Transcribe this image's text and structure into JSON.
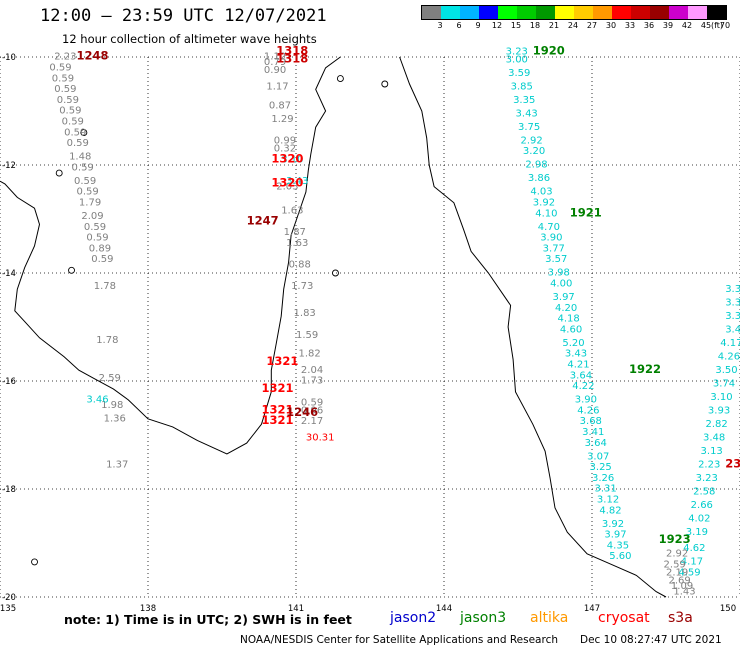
{
  "title": "12:00 – 23:59 UTC 12/07/2021",
  "subtitle": "12 hour collection of altimeter wave heights",
  "colorbar": {
    "colors": [
      "#808080",
      "#00e5e5",
      "#00b3ff",
      "#0000ff",
      "#00ff00",
      "#00cc00",
      "#009900",
      "#ffff00",
      "#ffcc00",
      "#ff9900",
      "#ff0000",
      "#cc0000",
      "#990000",
      "#cc00cc",
      "#ff99ff",
      "#000000"
    ],
    "labels": [
      "3",
      "6",
      "9",
      "12",
      "15",
      "18",
      "21",
      "24",
      "27",
      "30",
      "33",
      "36",
      "39",
      "42",
      "45",
      "70"
    ],
    "unit": "(ft)"
  },
  "axes": {
    "x_ticks": [
      "135",
      "138",
      "141",
      "144",
      "147",
      "150"
    ],
    "y_ticks": [
      "-10",
      "-12",
      "-14",
      "-16",
      "-18",
      "-20"
    ]
  },
  "note": "note: 1) Time is in UTC; 2) SWH is in feet",
  "legend": [
    {
      "label": "jason2",
      "color": "#0000cc"
    },
    {
      "label": "jason3",
      "color": "#008000"
    },
    {
      "label": "altika",
      "color": "#ff9900"
    },
    {
      "label": "cryosat",
      "color": "#ff0000"
    },
    {
      "label": "s3a",
      "color": "#990000"
    }
  ],
  "credit": "NOAA/NESDIS Center for Satellite Applications and Research",
  "credit_date": "Dec 10 08:27:47 UTC 2021",
  "chart_data": {
    "type": "scatter",
    "xlim": [
      135,
      150
    ],
    "ylim": [
      -20,
      -10
    ],
    "grid": true,
    "track_labels": [
      {
        "text": "1248",
        "lon": 136.55,
        "lat": -10.05,
        "color": "#990000"
      },
      {
        "text": "1318",
        "lon": 140.6,
        "lat": -9.95,
        "color": "#cc0000"
      },
      {
        "text": "1318",
        "lon": 140.6,
        "lat": -10.1,
        "color": "#cc0000"
      },
      {
        "text": "1320",
        "lon": 140.5,
        "lat": -11.95,
        "color": "#ff0000"
      },
      {
        "text": "1320",
        "lon": 140.5,
        "lat": -12.4,
        "color": "#ff0000"
      },
      {
        "text": "1247",
        "lon": 140.0,
        "lat": -13.1,
        "color": "#990000"
      },
      {
        "text": "1321",
        "lon": 140.4,
        "lat": -15.7,
        "color": "#ff0000"
      },
      {
        "text": "1321",
        "lon": 140.3,
        "lat": -16.2,
        "color": "#ff0000"
      },
      {
        "text": "1321",
        "lon": 140.3,
        "lat": -16.6,
        "color": "#ff0000"
      },
      {
        "text": "1321",
        "lon": 140.3,
        "lat": -16.8,
        "color": "#ff0000"
      },
      {
        "text": "1246",
        "lon": 140.8,
        "lat": -16.65,
        "color": "#990000"
      },
      {
        "text": "1920",
        "lon": 145.8,
        "lat": -9.95,
        "color": "#008000"
      },
      {
        "text": "1921",
        "lon": 146.55,
        "lat": -12.95,
        "color": "#008000"
      },
      {
        "text": "1922",
        "lon": 147.75,
        "lat": -15.85,
        "color": "#008000"
      },
      {
        "text": "1923",
        "lon": 148.35,
        "lat": -19.0,
        "color": "#008000"
      },
      {
        "text": "23",
        "lon": 149.7,
        "lat": -17.6,
        "color": "#cc0000"
      }
    ],
    "series": [
      {
        "name": "gray track 1",
        "color": "#808080",
        "points": [
          {
            "lon": 136.1,
            "lat": -10.05,
            "v": "2.23"
          },
          {
            "lon": 136.0,
            "lat": -10.25,
            "v": "0.59"
          },
          {
            "lon": 136.05,
            "lat": -10.45,
            "v": "0.59"
          },
          {
            "lon": 136.1,
            "lat": -10.65,
            "v": "0.59"
          },
          {
            "lon": 136.15,
            "lat": -10.85,
            "v": "0.59"
          },
          {
            "lon": 136.2,
            "lat": -11.05,
            "v": "0.59"
          },
          {
            "lon": 136.25,
            "lat": -11.25,
            "v": "0.59"
          },
          {
            "lon": 136.3,
            "lat": -11.45,
            "v": "0.59"
          },
          {
            "lon": 136.35,
            "lat": -11.65,
            "v": "0.59"
          },
          {
            "lon": 136.4,
            "lat": -11.9,
            "v": "1.48"
          },
          {
            "lon": 136.45,
            "lat": -12.1,
            "v": "0.59"
          },
          {
            "lon": 136.5,
            "lat": -12.35,
            "v": "0.59"
          },
          {
            "lon": 136.55,
            "lat": -12.55,
            "v": "0.59"
          },
          {
            "lon": 136.6,
            "lat": -12.75,
            "v": "1.79"
          },
          {
            "lon": 136.65,
            "lat": -13.0,
            "v": "2.09"
          },
          {
            "lon": 136.7,
            "lat": -13.2,
            "v": "0.59"
          },
          {
            "lon": 136.75,
            "lat": -13.4,
            "v": "0.59"
          },
          {
            "lon": 136.8,
            "lat": -13.6,
            "v": "0.89"
          },
          {
            "lon": 136.85,
            "lat": -13.8,
            "v": "0.59"
          },
          {
            "lon": 136.9,
            "lat": -14.3,
            "v": "1.78"
          },
          {
            "lon": 136.95,
            "lat": -15.3,
            "v": "1.78"
          },
          {
            "lon": 137.0,
            "lat": -16.0,
            "v": "2.59"
          },
          {
            "lon": 137.05,
            "lat": -16.5,
            "v": "1.98"
          },
          {
            "lon": 137.1,
            "lat": -16.75,
            "v": "1.36"
          },
          {
            "lon": 137.15,
            "lat": -17.6,
            "v": "1.37"
          }
        ]
      },
      {
        "name": "gray track 2",
        "color": "#808080",
        "points": [
          {
            "lon": 140.35,
            "lat": -10.05,
            "v": "1.12"
          },
          {
            "lon": 140.35,
            "lat": -10.15,
            "v": "0.79"
          },
          {
            "lon": 140.35,
            "lat": -10.3,
            "v": "0.90"
          },
          {
            "lon": 140.4,
            "lat": -10.6,
            "v": "1.17"
          },
          {
            "lon": 140.45,
            "lat": -10.95,
            "v": "0.87"
          },
          {
            "lon": 140.5,
            "lat": -11.2,
            "v": "1.29"
          },
          {
            "lon": 140.55,
            "lat": -11.6,
            "v": "0.99"
          },
          {
            "lon": 140.55,
            "lat": -11.75,
            "v": "0.32"
          },
          {
            "lon": 140.6,
            "lat": -12.45,
            "v": "2.03"
          },
          {
            "lon": 140.7,
            "lat": -12.9,
            "v": "1.63"
          },
          {
            "lon": 140.75,
            "lat": -13.3,
            "v": "1.87"
          },
          {
            "lon": 140.8,
            "lat": -13.5,
            "v": "1.63"
          },
          {
            "lon": 140.85,
            "lat": -13.9,
            "v": "0.88"
          },
          {
            "lon": 140.9,
            "lat": -14.3,
            "v": "1.73"
          },
          {
            "lon": 140.95,
            "lat": -14.8,
            "v": "1.83"
          },
          {
            "lon": 141.0,
            "lat": -15.2,
            "v": "1.59"
          },
          {
            "lon": 141.05,
            "lat": -15.55,
            "v": "1.82"
          },
          {
            "lon": 141.1,
            "lat": -15.85,
            "v": "2.04"
          },
          {
            "lon": 141.1,
            "lat": -16.05,
            "v": "1.73"
          },
          {
            "lon": 141.1,
            "lat": -16.45,
            "v": "0.59"
          },
          {
            "lon": 141.1,
            "lat": -16.6,
            "v": "0.96"
          },
          {
            "lon": 141.1,
            "lat": -16.8,
            "v": "2.17"
          }
        ]
      },
      {
        "name": "cyan track 1",
        "color": "#00cccc",
        "points": [
          {
            "lon": 145.25,
            "lat": -9.95,
            "v": "3.23"
          },
          {
            "lon": 145.25,
            "lat": -10.1,
            "v": "3.00"
          },
          {
            "lon": 145.3,
            "lat": -10.35,
            "v": "3.59"
          },
          {
            "lon": 145.35,
            "lat": -10.6,
            "v": "3.85"
          },
          {
            "lon": 145.4,
            "lat": -10.85,
            "v": "3.35"
          },
          {
            "lon": 145.45,
            "lat": -11.1,
            "v": "3.43"
          },
          {
            "lon": 145.5,
            "lat": -11.35,
            "v": "3.75"
          },
          {
            "lon": 145.55,
            "lat": -11.6,
            "v": "2.92"
          },
          {
            "lon": 145.6,
            "lat": -11.8,
            "v": "3.20"
          },
          {
            "lon": 145.65,
            "lat": -12.05,
            "v": "2.98"
          },
          {
            "lon": 145.7,
            "lat": -12.3,
            "v": "3.86"
          },
          {
            "lon": 145.75,
            "lat": -12.55,
            "v": "4.03"
          },
          {
            "lon": 145.8,
            "lat": -12.75,
            "v": "3.92"
          },
          {
            "lon": 145.85,
            "lat": -12.95,
            "v": "4.10"
          },
          {
            "lon": 145.9,
            "lat": -13.2,
            "v": "4.70"
          },
          {
            "lon": 145.95,
            "lat": -13.4,
            "v": "3.90"
          },
          {
            "lon": 146.0,
            "lat": -13.6,
            "v": "3.77"
          },
          {
            "lon": 146.05,
            "lat": -13.8,
            "v": "3.57"
          },
          {
            "lon": 146.1,
            "lat": -14.05,
            "v": "3.98"
          },
          {
            "lon": 146.15,
            "lat": -14.25,
            "v": "4.00"
          },
          {
            "lon": 146.2,
            "lat": -14.5,
            "v": "3.97"
          },
          {
            "lon": 146.25,
            "lat": -14.7,
            "v": "4.20"
          },
          {
            "lon": 146.3,
            "lat": -14.9,
            "v": "4.18"
          },
          {
            "lon": 146.35,
            "lat": -15.1,
            "v": "4.60"
          },
          {
            "lon": 146.4,
            "lat": -15.35,
            "v": "5.20"
          },
          {
            "lon": 146.45,
            "lat": -15.55,
            "v": "3.43"
          },
          {
            "lon": 146.5,
            "lat": -15.75,
            "v": "4.21"
          },
          {
            "lon": 146.55,
            "lat": -15.95,
            "v": "3.64"
          },
          {
            "lon": 146.6,
            "lat": -16.15,
            "v": "4.22"
          },
          {
            "lon": 146.65,
            "lat": -16.4,
            "v": "3.90"
          },
          {
            "lon": 146.7,
            "lat": -16.6,
            "v": "4.26"
          },
          {
            "lon": 146.75,
            "lat": -16.8,
            "v": "3.68"
          },
          {
            "lon": 146.8,
            "lat": -17.0,
            "v": "3.41"
          },
          {
            "lon": 146.85,
            "lat": -17.2,
            "v": "3.64"
          },
          {
            "lon": 146.9,
            "lat": -17.45,
            "v": "3.07"
          },
          {
            "lon": 146.95,
            "lat": -17.65,
            "v": "3.25"
          },
          {
            "lon": 147.0,
            "lat": -17.85,
            "v": "3.26"
          },
          {
            "lon": 147.05,
            "lat": -18.05,
            "v": "3.31"
          },
          {
            "lon": 147.1,
            "lat": -18.25,
            "v": "3.12"
          },
          {
            "lon": 147.15,
            "lat": -18.45,
            "v": "4.82"
          },
          {
            "lon": 147.2,
            "lat": -18.7,
            "v": "3.92"
          },
          {
            "lon": 147.25,
            "lat": -18.9,
            "v": "3.97"
          },
          {
            "lon": 147.3,
            "lat": -19.1,
            "v": "4.35"
          },
          {
            "lon": 147.35,
            "lat": -19.3,
            "v": "5.60"
          }
        ]
      },
      {
        "name": "cyan track 2",
        "color": "#00cccc",
        "points": [
          {
            "lon": 149.7,
            "lat": -14.35,
            "v": "3.3"
          },
          {
            "lon": 149.7,
            "lat": -14.6,
            "v": "3.3"
          },
          {
            "lon": 149.7,
            "lat": -14.85,
            "v": "3.3"
          },
          {
            "lon": 149.7,
            "lat": -15.1,
            "v": "3.4"
          },
          {
            "lon": 149.6,
            "lat": -15.35,
            "v": "4.17"
          },
          {
            "lon": 149.55,
            "lat": -15.6,
            "v": "4.26"
          },
          {
            "lon": 149.5,
            "lat": -15.85,
            "v": "3.50"
          },
          {
            "lon": 149.45,
            "lat": -16.1,
            "v": "3.74"
          },
          {
            "lon": 149.4,
            "lat": -16.35,
            "v": "3.10"
          },
          {
            "lon": 149.35,
            "lat": -16.6,
            "v": "3.93"
          },
          {
            "lon": 149.3,
            "lat": -16.85,
            "v": "2.82"
          },
          {
            "lon": 149.25,
            "lat": -17.1,
            "v": "3.48"
          },
          {
            "lon": 149.2,
            "lat": -17.35,
            "v": "3.13"
          },
          {
            "lon": 149.15,
            "lat": -17.6,
            "v": "2.23"
          },
          {
            "lon": 149.1,
            "lat": -17.85,
            "v": "3.23"
          },
          {
            "lon": 149.05,
            "lat": -18.1,
            "v": "2.58"
          },
          {
            "lon": 149.0,
            "lat": -18.35,
            "v": "2.66"
          },
          {
            "lon": 148.95,
            "lat": -18.6,
            "v": "4.02"
          },
          {
            "lon": 148.9,
            "lat": -18.85,
            "v": "3.19"
          },
          {
            "lon": 148.85,
            "lat": -19.15,
            "v": "4.62"
          },
          {
            "lon": 148.8,
            "lat": -19.4,
            "v": "4.17"
          },
          {
            "lon": 148.75,
            "lat": -19.6,
            "v": "4.59"
          }
        ]
      },
      {
        "name": "gray track 3",
        "color": "#808080",
        "points": [
          {
            "lon": 148.5,
            "lat": -19.25,
            "v": "2.92"
          },
          {
            "lon": 148.45,
            "lat": -19.45,
            "v": "2.59"
          },
          {
            "lon": 148.5,
            "lat": -19.6,
            "v": "2.19"
          },
          {
            "lon": 148.55,
            "lat": -19.75,
            "v": "2.69"
          },
          {
            "lon": 148.6,
            "lat": -19.85,
            "v": "1.09"
          },
          {
            "lon": 148.65,
            "lat": -19.95,
            "v": "1.43"
          }
        ]
      },
      {
        "name": "cyan track 3",
        "color": "#00cccc",
        "points": [
          {
            "lon": 140.7,
            "lat": -11.95,
            "v": "3.10"
          },
          {
            "lon": 140.8,
            "lat": -12.35,
            "v": "3.43"
          },
          {
            "lon": 136.75,
            "lat": -16.4,
            "v": "3.46"
          }
        ]
      },
      {
        "name": "red values",
        "color": "#ff0000",
        "points": [
          {
            "lon": 141.2,
            "lat": -17.1,
            "v": "30.31"
          }
        ]
      }
    ]
  }
}
